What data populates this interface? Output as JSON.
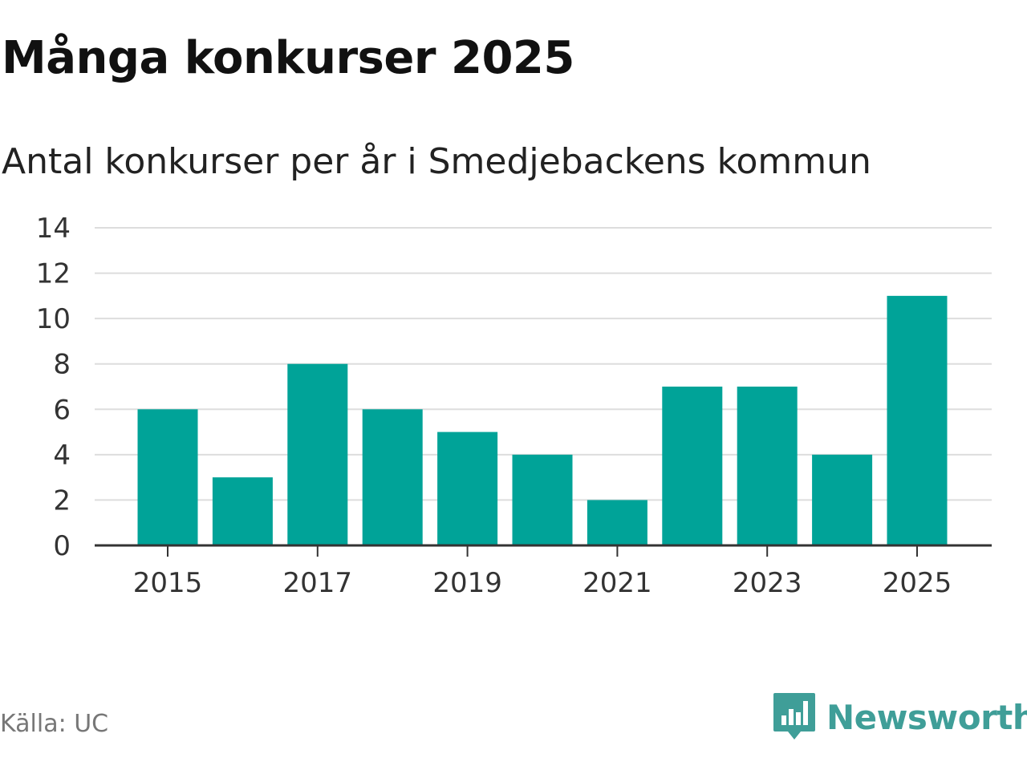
{
  "title": "Många konkurser 2025",
  "subtitle": "Antal konkurser per år i Smedjebackens kommun",
  "source": "Källa: UC",
  "brand": {
    "name": "Newsworthy",
    "icon": "newsworthy-logo-icon",
    "color": "#3f9e98"
  },
  "chart_data": {
    "type": "bar",
    "categories": [
      "2015",
      "2016",
      "2017",
      "2018",
      "2019",
      "2020",
      "2021",
      "2022",
      "2023",
      "2024",
      "2025"
    ],
    "values": [
      6,
      3,
      8,
      6,
      5,
      4,
      2,
      7,
      7,
      4,
      11
    ],
    "x_tick_labels": [
      "2015",
      "2017",
      "2019",
      "2021",
      "2023",
      "2025"
    ],
    "y_ticks": [
      "0",
      "2",
      "4",
      "6",
      "8",
      "10",
      "12",
      "14"
    ],
    "ylim": [
      0,
      14
    ],
    "bar_color": "#00a398",
    "grid": true,
    "legend": false,
    "xlabel": "",
    "ylabel": ""
  }
}
